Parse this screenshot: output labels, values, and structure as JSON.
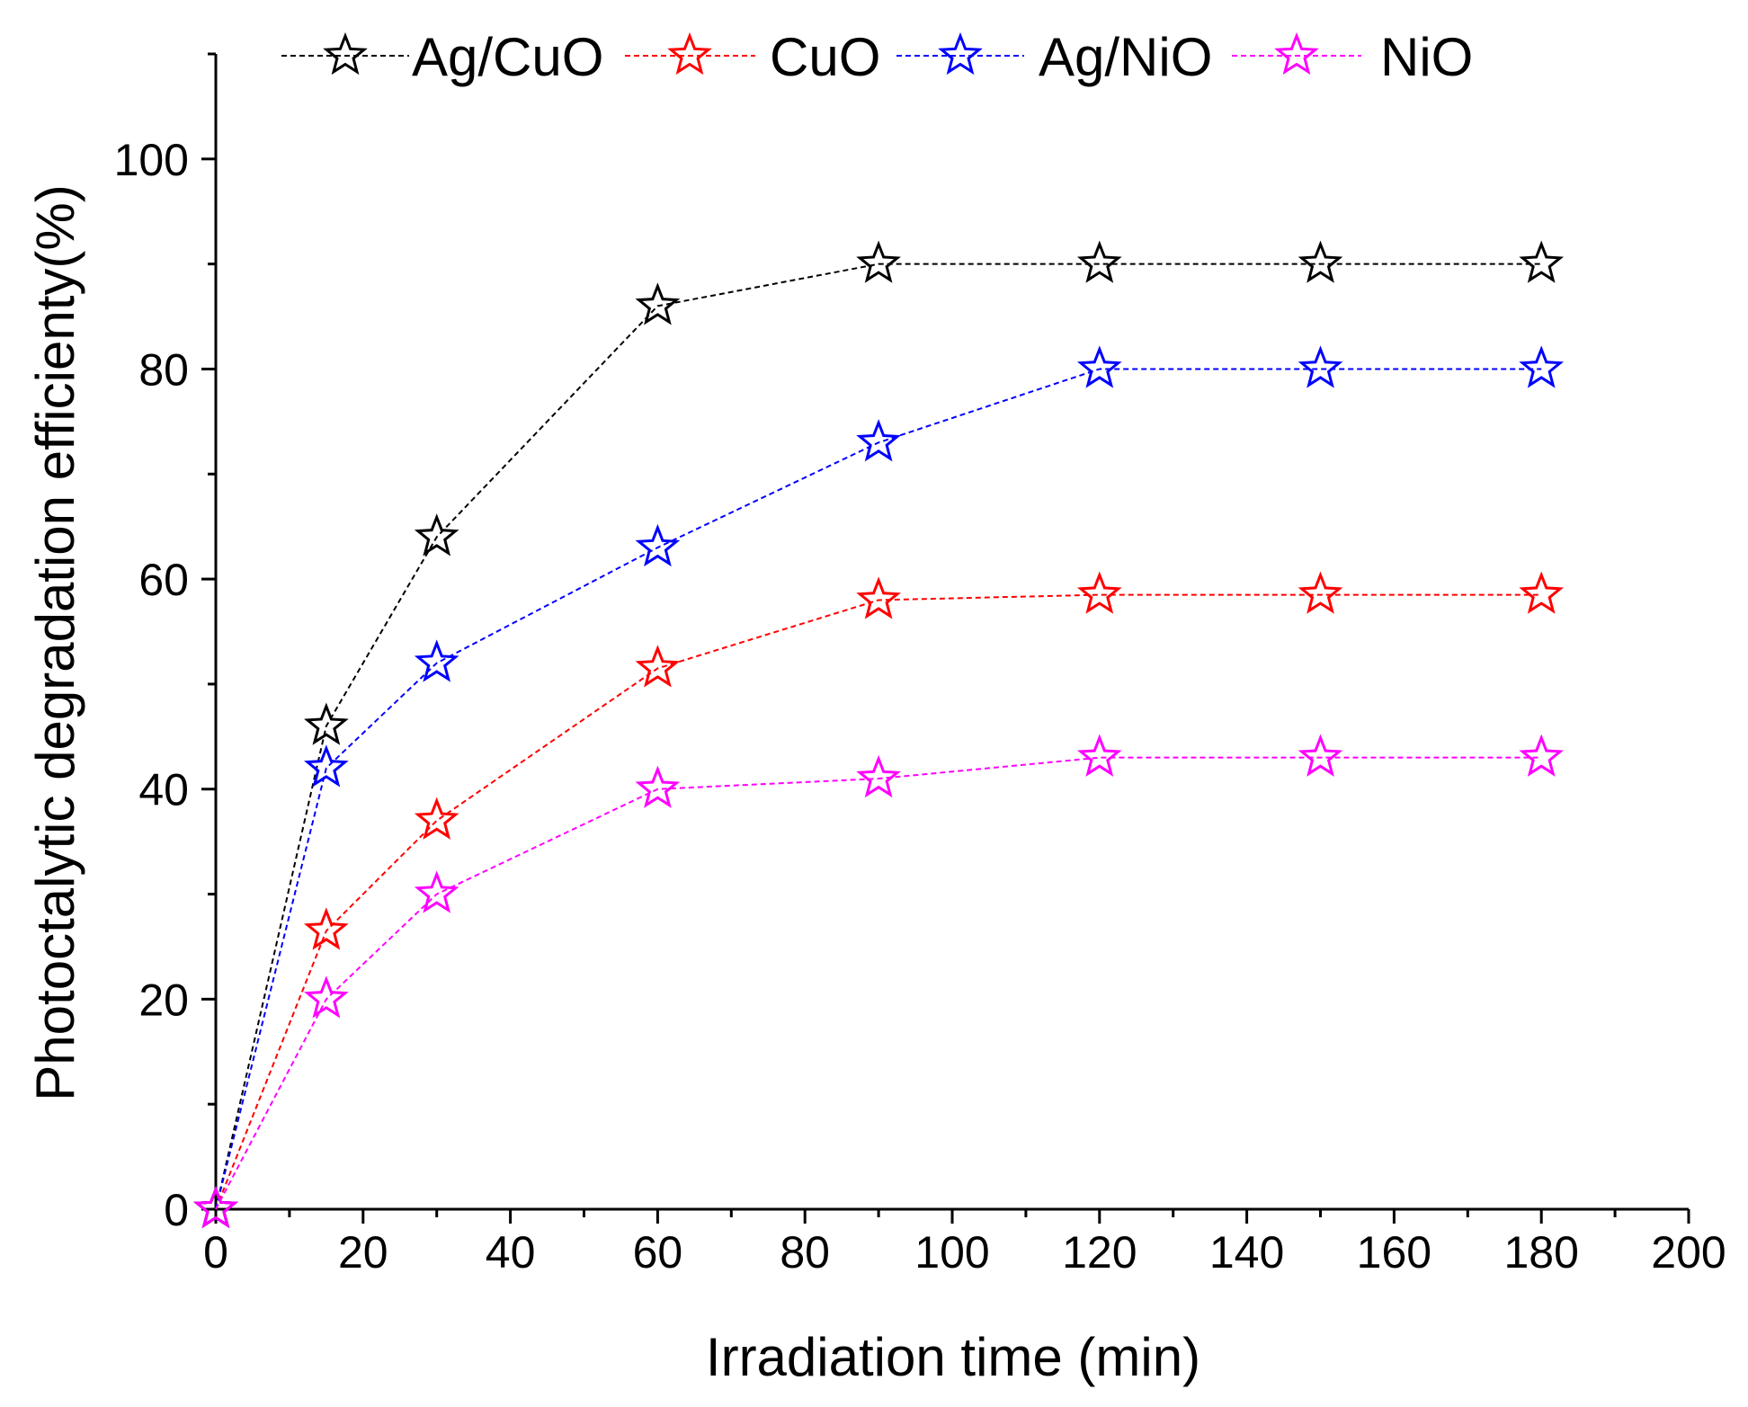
{
  "chart_data": {
    "type": "line",
    "title": "",
    "xlabel": "Irradiation time (min)",
    "ylabel": "Photoctalytic degradation efficienty(%)",
    "xlim": [
      0,
      200
    ],
    "ylim": [
      0,
      110
    ],
    "x_ticks": [
      0,
      20,
      40,
      60,
      80,
      100,
      120,
      140,
      160,
      180,
      200
    ],
    "x_minor_step": 10,
    "y_ticks": [
      0,
      20,
      40,
      60,
      80,
      100
    ],
    "y_minor_step": 10,
    "grid": false,
    "legend_position": "top",
    "x": [
      0,
      15,
      30,
      60,
      90,
      120,
      150,
      180
    ],
    "series": [
      {
        "name": "Ag/CuO",
        "color": "#000000",
        "marker": "open-star",
        "line": "dashed",
        "values": [
          0,
          46,
          64,
          86,
          90,
          90,
          90,
          90
        ]
      },
      {
        "name": "CuO",
        "color": "#ff0000",
        "marker": "open-star",
        "line": "dashed",
        "values": [
          0,
          26.5,
          37,
          51.5,
          58,
          58.5,
          58.5,
          58.5
        ]
      },
      {
        "name": "Ag/NiO",
        "color": "#0000ff",
        "marker": "open-star",
        "line": "dashed",
        "values": [
          0,
          42,
          52,
          63,
          73,
          80,
          80,
          80
        ]
      },
      {
        "name": "NiO",
        "color": "#ff00ff",
        "marker": "open-star",
        "line": "dashed",
        "values": [
          0,
          20,
          30,
          40,
          41,
          43,
          43,
          43
        ]
      }
    ]
  }
}
